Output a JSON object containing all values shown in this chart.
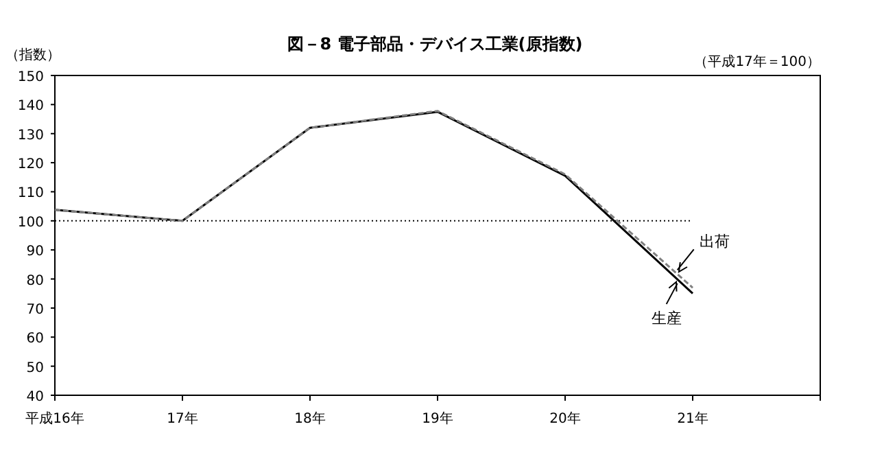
{
  "chart_data": {
    "type": "line",
    "title": "図－8 電子部品・デバイス工業(原指数)",
    "ylabel": "（指数）",
    "annotations": [
      "（平成17年＝100）"
    ],
    "categories": [
      "平成16年",
      "17年",
      "18年",
      "19年",
      "20年",
      "21年",
      null
    ],
    "series": [
      {
        "name": "生産",
        "color": "#000000",
        "line_style": "solid",
        "values": [
          103.8,
          100,
          132,
          137.5,
          115.5,
          75,
          null
        ]
      },
      {
        "name": "出荷",
        "color": "#808080",
        "line_style": "dashed",
        "values": [
          103.8,
          100,
          132,
          137.8,
          116,
          77,
          null
        ]
      }
    ],
    "ylim": [
      40,
      150
    ],
    "yticks": [
      40,
      50,
      60,
      70,
      80,
      90,
      100,
      110,
      120,
      130,
      140,
      150
    ],
    "ref_lines": [
      {
        "axis": "y",
        "value": 100,
        "line_style": "dotted",
        "color": "#000000"
      }
    ],
    "grid": false,
    "legend": "bottom right",
    "marker": "none"
  }
}
